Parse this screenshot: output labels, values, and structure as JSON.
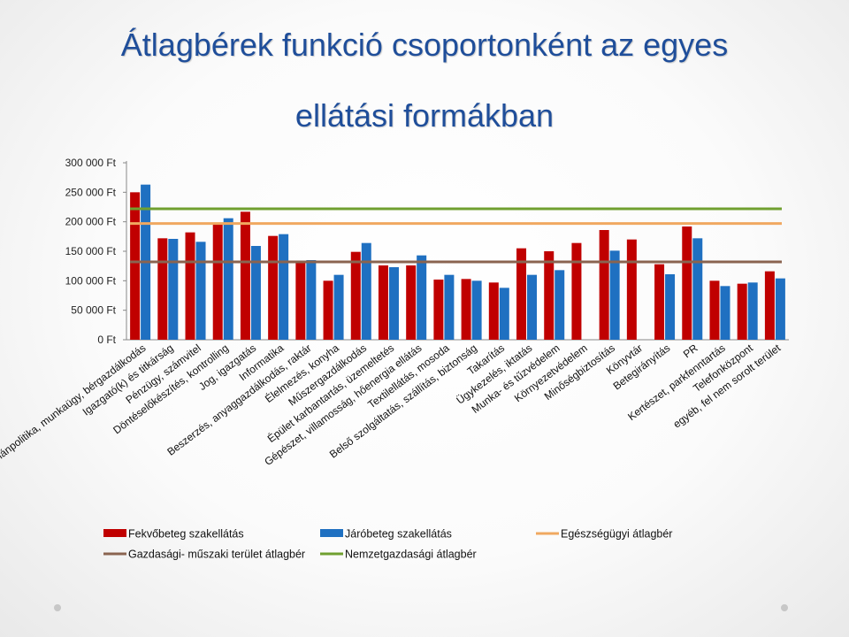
{
  "title": {
    "line1": "Átlagbérek funkció csoportonként az egyes",
    "line2": "ellátási formákban"
  },
  "colors": {
    "fekvo": "#c00000",
    "jaro": "#1f70c1",
    "egeszsegugyi": "#f0a860",
    "gazdasagi": "#8a6450",
    "nemzetgazdasagi": "#70a030",
    "title": "#1f4e9a"
  },
  "chart_data": {
    "type": "bar",
    "ylim": [
      0,
      300000
    ],
    "yticks": [
      {
        "value": 300000,
        "label": "300 000 Ft"
      },
      {
        "value": 250000,
        "label": "250 000 Ft"
      },
      {
        "value": 200000,
        "label": "200 000 Ft"
      },
      {
        "value": 150000,
        "label": "150 000 Ft"
      },
      {
        "value": 100000,
        "label": "100 000 Ft"
      },
      {
        "value": 50000,
        "label": "50 000 Ft"
      },
      {
        "value": 0,
        "label": "0 Ft"
      }
    ],
    "grid": false,
    "categories": [
      "Humánpolitika, munkaügy, bérgazdálkodás",
      "Igazgató(k) és titkárság",
      "Pénzügy, számvitel",
      "Döntéselőkészítés, kontrolling",
      "Jog, igazgatás",
      "Informatika",
      "Beszerzés, anyaggazdálkodás, raktár",
      "Élelmezés, konyha",
      "Műszergazdálkodás",
      "Épület karbantartás, üzemeltetés",
      "Gépészet, villamosság, hőenergia ellátás",
      "Textilellátás, mosoda",
      "Belső szolgáltatás, szállítás, biztonság",
      "Takarítás",
      "Ügykezelés, iktatás",
      "Munka- és tűzvédelem",
      "Környezetvédelem",
      "Minőségbiztosítás",
      "Könyvtár",
      "Betegirányítás",
      "PR",
      "Kertészet, parkfenntartás",
      "Telefonközpont",
      "egyéb, fel nem sorolt terület"
    ],
    "series": [
      {
        "name": "Fekvőbeteg szakellátás",
        "color": "#c00000",
        "values": [
          250000,
          172000,
          182000,
          197000,
          217000,
          176000,
          130000,
          100000,
          149000,
          126000,
          126000,
          102000,
          103000,
          97000,
          155000,
          150000,
          164000,
          186000,
          170000,
          128000,
          192000,
          100000,
          95000,
          116000
        ]
      },
      {
        "name": "Járóbeteg szakellátás",
        "color": "#1f70c1",
        "values": [
          263000,
          171000,
          166000,
          206000,
          159000,
          179000,
          135000,
          110000,
          164000,
          123000,
          143000,
          110000,
          100000,
          88000,
          110000,
          118000,
          null,
          151000,
          null,
          111000,
          172000,
          91000,
          97000,
          104000
        ]
      }
    ],
    "reference_lines": [
      {
        "name": "Egészségügyi átlagbér",
        "value": 197000,
        "color": "#f0a860"
      },
      {
        "name": "Gazdasági- műszaki terület átlagbér",
        "value": 132000,
        "color": "#8a6450"
      },
      {
        "name": "Nemzetgazdasági átlagbér",
        "value": 222000,
        "color": "#70a030"
      }
    ],
    "legend": [
      {
        "label": "Fekvőbeteg szakellátás",
        "kind": "bar",
        "color": "#c00000"
      },
      {
        "label": "Járóbeteg szakellátás",
        "kind": "bar",
        "color": "#1f70c1"
      },
      {
        "label": "Egészségügyi átlagbér",
        "kind": "line",
        "color": "#f0a860"
      },
      {
        "label": "Gazdasági- műszaki terület átlagbér",
        "kind": "line",
        "color": "#8a6450"
      },
      {
        "label": "Nemzetgazdasági átlagbér",
        "kind": "line",
        "color": "#70a030"
      }
    ],
    "legend_position": "bottom"
  }
}
